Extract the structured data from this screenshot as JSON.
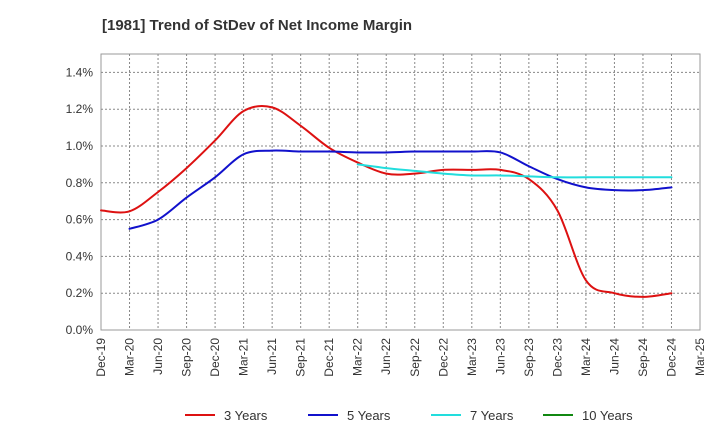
{
  "chart_data": {
    "type": "line",
    "title": "[1981]  Trend of StDev of Net Income Margin",
    "xlabel": "",
    "ylabel": "",
    "x": [
      "Dec-19",
      "Mar-20",
      "Jun-20",
      "Sep-20",
      "Dec-20",
      "Mar-21",
      "Jun-21",
      "Sep-21",
      "Dec-21",
      "Mar-22",
      "Jun-22",
      "Sep-22",
      "Dec-22",
      "Mar-23",
      "Jun-23",
      "Sep-23",
      "Dec-23",
      "Mar-24",
      "Jun-24",
      "Sep-24",
      "Dec-24",
      "Mar-25"
    ],
    "ylim": [
      0,
      1.5
    ],
    "yticks": [
      "0.0%",
      "0.2%",
      "0.4%",
      "0.6%",
      "0.8%",
      "1.0%",
      "1.2%",
      "1.4%"
    ],
    "grid": true,
    "legend_position": "bottom",
    "series": [
      {
        "name": "3 Years",
        "color": "#dd1111",
        "values": [
          0.65,
          0.645,
          0.75,
          0.88,
          1.03,
          1.19,
          1.21,
          1.11,
          0.99,
          0.91,
          0.85,
          0.85,
          0.87,
          0.87,
          0.87,
          0.82,
          0.65,
          0.27,
          0.2,
          0.18,
          0.2,
          null
        ]
      },
      {
        "name": "5 Years",
        "color": "#1111cc",
        "values": [
          null,
          0.55,
          0.6,
          0.72,
          0.83,
          0.955,
          0.975,
          0.97,
          0.97,
          0.965,
          0.965,
          0.97,
          0.97,
          0.97,
          0.965,
          0.89,
          0.82,
          0.775,
          0.76,
          0.76,
          0.775,
          null
        ]
      },
      {
        "name": "7 Years",
        "color": "#22dddd",
        "values": [
          null,
          null,
          null,
          null,
          null,
          null,
          null,
          null,
          null,
          0.9,
          0.88,
          0.865,
          0.85,
          0.84,
          0.84,
          0.835,
          0.83,
          0.83,
          0.83,
          0.83,
          0.83,
          null
        ]
      },
      {
        "name": "10 Years",
        "color": "#118811",
        "values": [
          null,
          null,
          null,
          null,
          null,
          null,
          null,
          null,
          null,
          null,
          null,
          null,
          null,
          null,
          null,
          null,
          null,
          null,
          null,
          null,
          null,
          null
        ]
      }
    ]
  }
}
